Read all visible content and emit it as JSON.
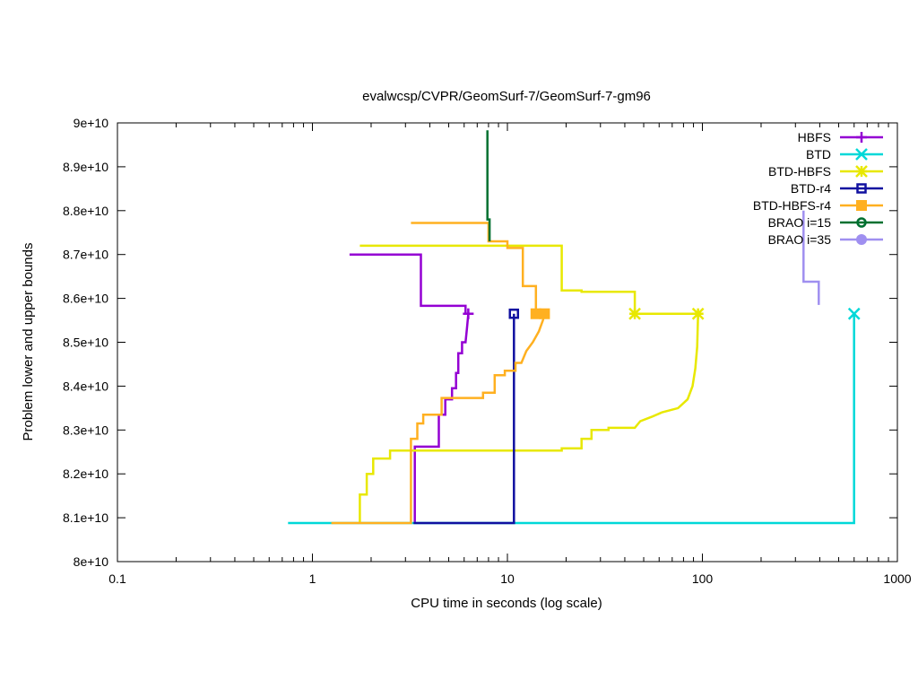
{
  "chart_data": {
    "type": "line",
    "title": "evalwcsp/CVPR/GeomSurf-7/GeomSurf-7-gm96",
    "xlabel": "CPU time in seconds (log scale)",
    "ylabel": "Problem lower and upper bounds",
    "xscale": "log",
    "xlim": [
      0.1,
      1000
    ],
    "ylim": [
      80000000000,
      90000000000
    ],
    "x_ticks": [
      {
        "value": 0.1,
        "label": "0.1"
      },
      {
        "value": 1,
        "label": "1"
      },
      {
        "value": 10,
        "label": "10"
      },
      {
        "value": 100,
        "label": "100"
      },
      {
        "value": 1000,
        "label": "1000"
      }
    ],
    "y_ticks": [
      {
        "value": 80000000000,
        "label": "8e+10"
      },
      {
        "value": 81000000000,
        "label": "8.1e+10"
      },
      {
        "value": 82000000000,
        "label": "8.2e+10"
      },
      {
        "value": 83000000000,
        "label": "8.3e+10"
      },
      {
        "value": 84000000000,
        "label": "8.4e+10"
      },
      {
        "value": 85000000000,
        "label": "8.5e+10"
      },
      {
        "value": 86000000000,
        "label": "8.6e+10"
      },
      {
        "value": 87000000000,
        "label": "8.7e+10"
      },
      {
        "value": 88000000000,
        "label": "8.8e+10"
      },
      {
        "value": 89000000000,
        "label": "8.9e+10"
      },
      {
        "value": 90000000000,
        "label": "9e+10"
      }
    ],
    "grid": false,
    "legend_position": "top-right",
    "series": [
      {
        "name": "HBFS",
        "color": "#9400d3",
        "marker": "plus",
        "upper": [
          [
            1.55,
            87000000000
          ],
          [
            3.6,
            87000000000
          ],
          [
            3.6,
            85830000000
          ],
          [
            6.1,
            85830000000
          ],
          [
            6.1,
            85650000000
          ]
        ],
        "lower": [
          [
            3.35,
            80880000000
          ],
          [
            3.35,
            82620000000
          ],
          [
            4.45,
            82620000000
          ],
          [
            4.45,
            83350000000
          ],
          [
            4.8,
            83350000000
          ],
          [
            4.8,
            83700000000
          ],
          [
            5.2,
            83700000000
          ],
          [
            5.2,
            83950000000
          ],
          [
            5.45,
            83950000000
          ],
          [
            5.45,
            84300000000
          ],
          [
            5.6,
            84300000000
          ],
          [
            5.6,
            84750000000
          ],
          [
            5.85,
            84750000000
          ],
          [
            5.85,
            85000000000
          ],
          [
            6.1,
            85000000000
          ],
          [
            6.2,
            85300000000
          ],
          [
            6.3,
            85650000000
          ]
        ],
        "marker_points": [
          [
            6.3,
            85650000000
          ]
        ]
      },
      {
        "name": "BTD",
        "color": "#00d8d8",
        "marker": "cross",
        "upper": [],
        "lower": [
          [
            0.75,
            80880000000
          ],
          [
            600,
            80880000000
          ],
          [
            600,
            85650000000
          ]
        ],
        "marker_points": [
          [
            600,
            85650000000
          ]
        ]
      },
      {
        "name": "BTD-HBFS",
        "color": "#e8e800",
        "marker": "star",
        "upper": [
          [
            1.75,
            87200000000
          ],
          [
            19,
            87200000000
          ],
          [
            19,
            86180000000
          ],
          [
            24,
            86180000000
          ],
          [
            24,
            86150000000
          ],
          [
            45,
            86150000000
          ],
          [
            45,
            85650000000
          ],
          [
            95,
            85650000000
          ]
        ],
        "lower": [
          [
            1.75,
            80880000000
          ],
          [
            1.75,
            81530000000
          ],
          [
            1.9,
            81530000000
          ],
          [
            1.9,
            82000000000
          ],
          [
            2.05,
            82000000000
          ],
          [
            2.05,
            82350000000
          ],
          [
            2.5,
            82350000000
          ],
          [
            2.5,
            82530000000
          ],
          [
            19,
            82530000000
          ],
          [
            19,
            82580000000
          ],
          [
            24,
            82580000000
          ],
          [
            24,
            82800000000
          ],
          [
            27,
            82800000000
          ],
          [
            27,
            83000000000
          ],
          [
            33,
            83000000000
          ],
          [
            33,
            83050000000
          ],
          [
            45,
            83050000000
          ],
          [
            48,
            83200000000
          ],
          [
            55,
            83300000000
          ],
          [
            62,
            83400000000
          ],
          [
            75,
            83500000000
          ],
          [
            84,
            83700000000
          ],
          [
            89,
            84000000000
          ],
          [
            92,
            84400000000
          ],
          [
            94,
            84900000000
          ],
          [
            95,
            85650000000
          ]
        ],
        "marker_points": [
          [
            45,
            85650000000
          ],
          [
            95,
            85650000000
          ]
        ]
      },
      {
        "name": "BTD-r4",
        "color": "#1010a0",
        "marker": "open-square",
        "upper": [],
        "lower": [
          [
            3.3,
            80880000000
          ],
          [
            10.8,
            80880000000
          ],
          [
            10.8,
            85650000000
          ]
        ],
        "marker_points": [
          [
            10.8,
            85650000000
          ]
        ]
      },
      {
        "name": "BTD-HBFS-r4",
        "color": "#ffb020",
        "marker": "filled-square",
        "upper": [
          [
            3.2,
            87720000000
          ],
          [
            8,
            87720000000
          ],
          [
            8,
            87300000000
          ],
          [
            10,
            87300000000
          ],
          [
            10,
            87150000000
          ],
          [
            12,
            87150000000
          ],
          [
            12,
            86280000000
          ],
          [
            14,
            86280000000
          ],
          [
            14,
            85650000000
          ],
          [
            15.5,
            85650000000
          ]
        ],
        "lower": [
          [
            1.25,
            80880000000
          ],
          [
            3.2,
            80880000000
          ],
          [
            3.2,
            82800000000
          ],
          [
            3.45,
            82800000000
          ],
          [
            3.45,
            83150000000
          ],
          [
            3.7,
            83150000000
          ],
          [
            3.7,
            83350000000
          ],
          [
            4.6,
            83350000000
          ],
          [
            4.6,
            83730000000
          ],
          [
            7.5,
            83730000000
          ],
          [
            7.5,
            83850000000
          ],
          [
            8.6,
            83850000000
          ],
          [
            8.6,
            84250000000
          ],
          [
            9.7,
            84250000000
          ],
          [
            9.7,
            84350000000
          ],
          [
            11,
            84350000000
          ],
          [
            11,
            84530000000
          ],
          [
            11.8,
            84530000000
          ],
          [
            12.5,
            84800000000
          ],
          [
            13.5,
            85000000000
          ],
          [
            14.5,
            85250000000
          ],
          [
            15.2,
            85500000000
          ],
          [
            15.5,
            85650000000
          ]
        ],
        "marker_points": [
          [
            14,
            85650000000
          ],
          [
            15.5,
            85650000000
          ]
        ]
      },
      {
        "name": "BRAO i=15",
        "color": "#007030",
        "marker": "open-circle",
        "upper": [
          [
            7.9,
            89830000000
          ],
          [
            7.9,
            87800000000
          ],
          [
            8.1,
            87800000000
          ],
          [
            8.1,
            87300000000
          ]
        ],
        "lower": [],
        "marker_points": []
      },
      {
        "name": "BRAO i=35",
        "color": "#9f8ff0",
        "marker": "filled-circle",
        "upper": [
          [
            330,
            88000000000
          ],
          [
            330,
            86380000000
          ],
          [
            395,
            86380000000
          ],
          [
            395,
            85850000000
          ]
        ],
        "lower": [],
        "marker_points": []
      }
    ]
  }
}
